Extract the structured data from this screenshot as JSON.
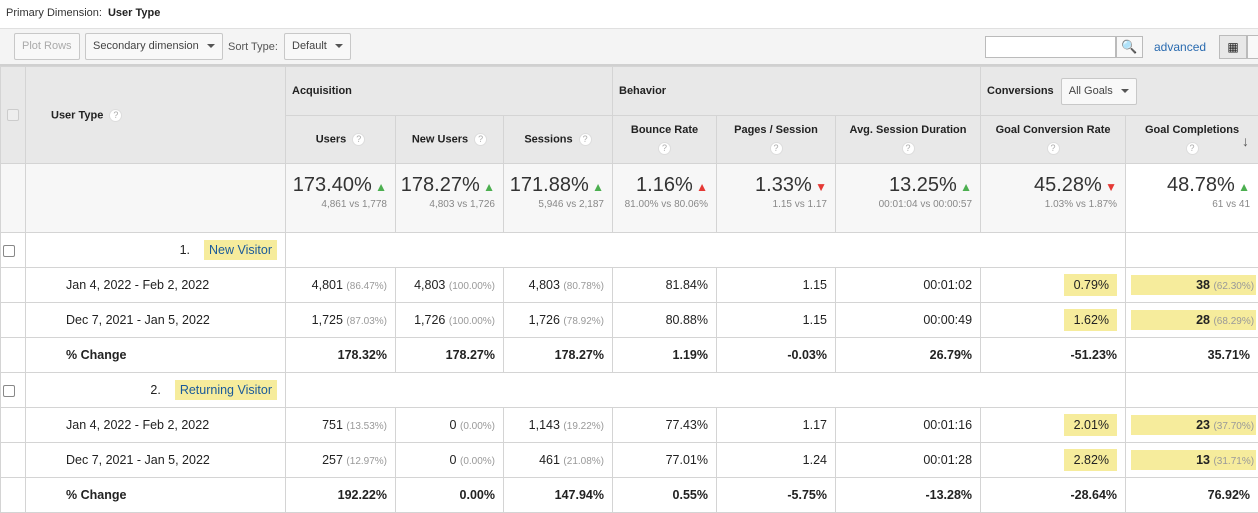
{
  "primary_dimension": {
    "label": "Primary Dimension:",
    "value": "User Type"
  },
  "toolbar": {
    "plot_rows": "Plot Rows",
    "secondary_dimension": "Secondary dimension",
    "sort_type_label": "Sort Type:",
    "sort_type": "Default",
    "search_value": "",
    "advanced": "advanced"
  },
  "header": {
    "dimension": "User Type",
    "groups": {
      "acquisition": "Acquisition",
      "behavior": "Behavior",
      "conversions": "Conversions",
      "goals_select": "All Goals"
    },
    "columns": [
      "Users",
      "New Users",
      "Sessions",
      "Bounce Rate",
      "Pages / Session",
      "Avg. Session Duration",
      "Goal Conversion Rate",
      "Goal Completions"
    ]
  },
  "summary": [
    {
      "value": "173.40%",
      "dir": "up",
      "color": "green",
      "detail": "4,861 vs 1,778"
    },
    {
      "value": "178.27%",
      "dir": "up",
      "color": "green",
      "detail": "4,803 vs 1,726"
    },
    {
      "value": "171.88%",
      "dir": "up",
      "color": "green",
      "detail": "5,946 vs 2,187"
    },
    {
      "value": "1.16%",
      "dir": "up",
      "color": "red",
      "detail": "81.00% vs 80.06%"
    },
    {
      "value": "1.33%",
      "dir": "down",
      "color": "red",
      "detail": "1.15 vs 1.17"
    },
    {
      "value": "13.25%",
      "dir": "up",
      "color": "green",
      "detail": "00:01:04 vs 00:00:57"
    },
    {
      "value": "45.28%",
      "dir": "down",
      "color": "red",
      "detail": "1.03% vs 1.87%"
    },
    {
      "value": "48.78%",
      "dir": "up",
      "color": "green",
      "detail": "61 vs 41"
    }
  ],
  "groups": [
    {
      "index": "1.",
      "name": "New Visitor",
      "rows": [
        {
          "label": "Jan 4, 2022 - Feb 2, 2022",
          "cells": [
            [
              "4,801",
              "(86.47%)"
            ],
            [
              "4,803",
              "(100.00%)"
            ],
            [
              "4,803",
              "(80.78%)"
            ],
            [
              "81.84%",
              ""
            ],
            [
              "1.15",
              ""
            ],
            [
              "00:01:02",
              ""
            ],
            [
              "0.79%",
              ""
            ],
            [
              "38",
              "(62.30%)"
            ]
          ]
        },
        {
          "label": "Dec 7, 2021 - Jan 5, 2022",
          "cells": [
            [
              "1,725",
              "(87.03%)"
            ],
            [
              "1,726",
              "(100.00%)"
            ],
            [
              "1,726",
              "(78.92%)"
            ],
            [
              "80.88%",
              ""
            ],
            [
              "1.15",
              ""
            ],
            [
              "00:00:49",
              ""
            ],
            [
              "1.62%",
              ""
            ],
            [
              "28",
              "(68.29%)"
            ]
          ]
        },
        {
          "label": "% Change",
          "change": true,
          "cells": [
            [
              "178.32%",
              ""
            ],
            [
              "178.27%",
              ""
            ],
            [
              "178.27%",
              ""
            ],
            [
              "1.19%",
              ""
            ],
            [
              "-0.03%",
              ""
            ],
            [
              "26.79%",
              ""
            ],
            [
              "-51.23%",
              ""
            ],
            [
              "35.71%",
              ""
            ]
          ]
        }
      ]
    },
    {
      "index": "2.",
      "name": "Returning Visitor",
      "rows": [
        {
          "label": "Jan 4, 2022 - Feb 2, 2022",
          "cells": [
            [
              "751",
              "(13.53%)"
            ],
            [
              "0",
              "(0.00%)"
            ],
            [
              "1,143",
              "(19.22%)"
            ],
            [
              "77.43%",
              ""
            ],
            [
              "1.17",
              ""
            ],
            [
              "00:01:16",
              ""
            ],
            [
              "2.01%",
              ""
            ],
            [
              "23",
              "(37.70%)"
            ]
          ]
        },
        {
          "label": "Dec 7, 2021 - Jan 5, 2022",
          "cells": [
            [
              "257",
              "(12.97%)"
            ],
            [
              "0",
              "(0.00%)"
            ],
            [
              "461",
              "(21.08%)"
            ],
            [
              "77.01%",
              ""
            ],
            [
              "1.24",
              ""
            ],
            [
              "00:01:28",
              ""
            ],
            [
              "2.82%",
              ""
            ],
            [
              "13",
              "(31.71%)"
            ]
          ]
        },
        {
          "label": "% Change",
          "change": true,
          "cells": [
            [
              "192.22%",
              ""
            ],
            [
              "0.00%",
              ""
            ],
            [
              "147.94%",
              ""
            ],
            [
              "0.55%",
              ""
            ],
            [
              "-5.75%",
              ""
            ],
            [
              "-13.28%",
              ""
            ],
            [
              "-28.64%",
              ""
            ],
            [
              "76.92%",
              ""
            ]
          ]
        }
      ]
    }
  ],
  "colors": {
    "highlight": "#f6ec9c",
    "up_green": "#4caf50",
    "down_red": "#e53935",
    "link": "#2a6bb0"
  }
}
